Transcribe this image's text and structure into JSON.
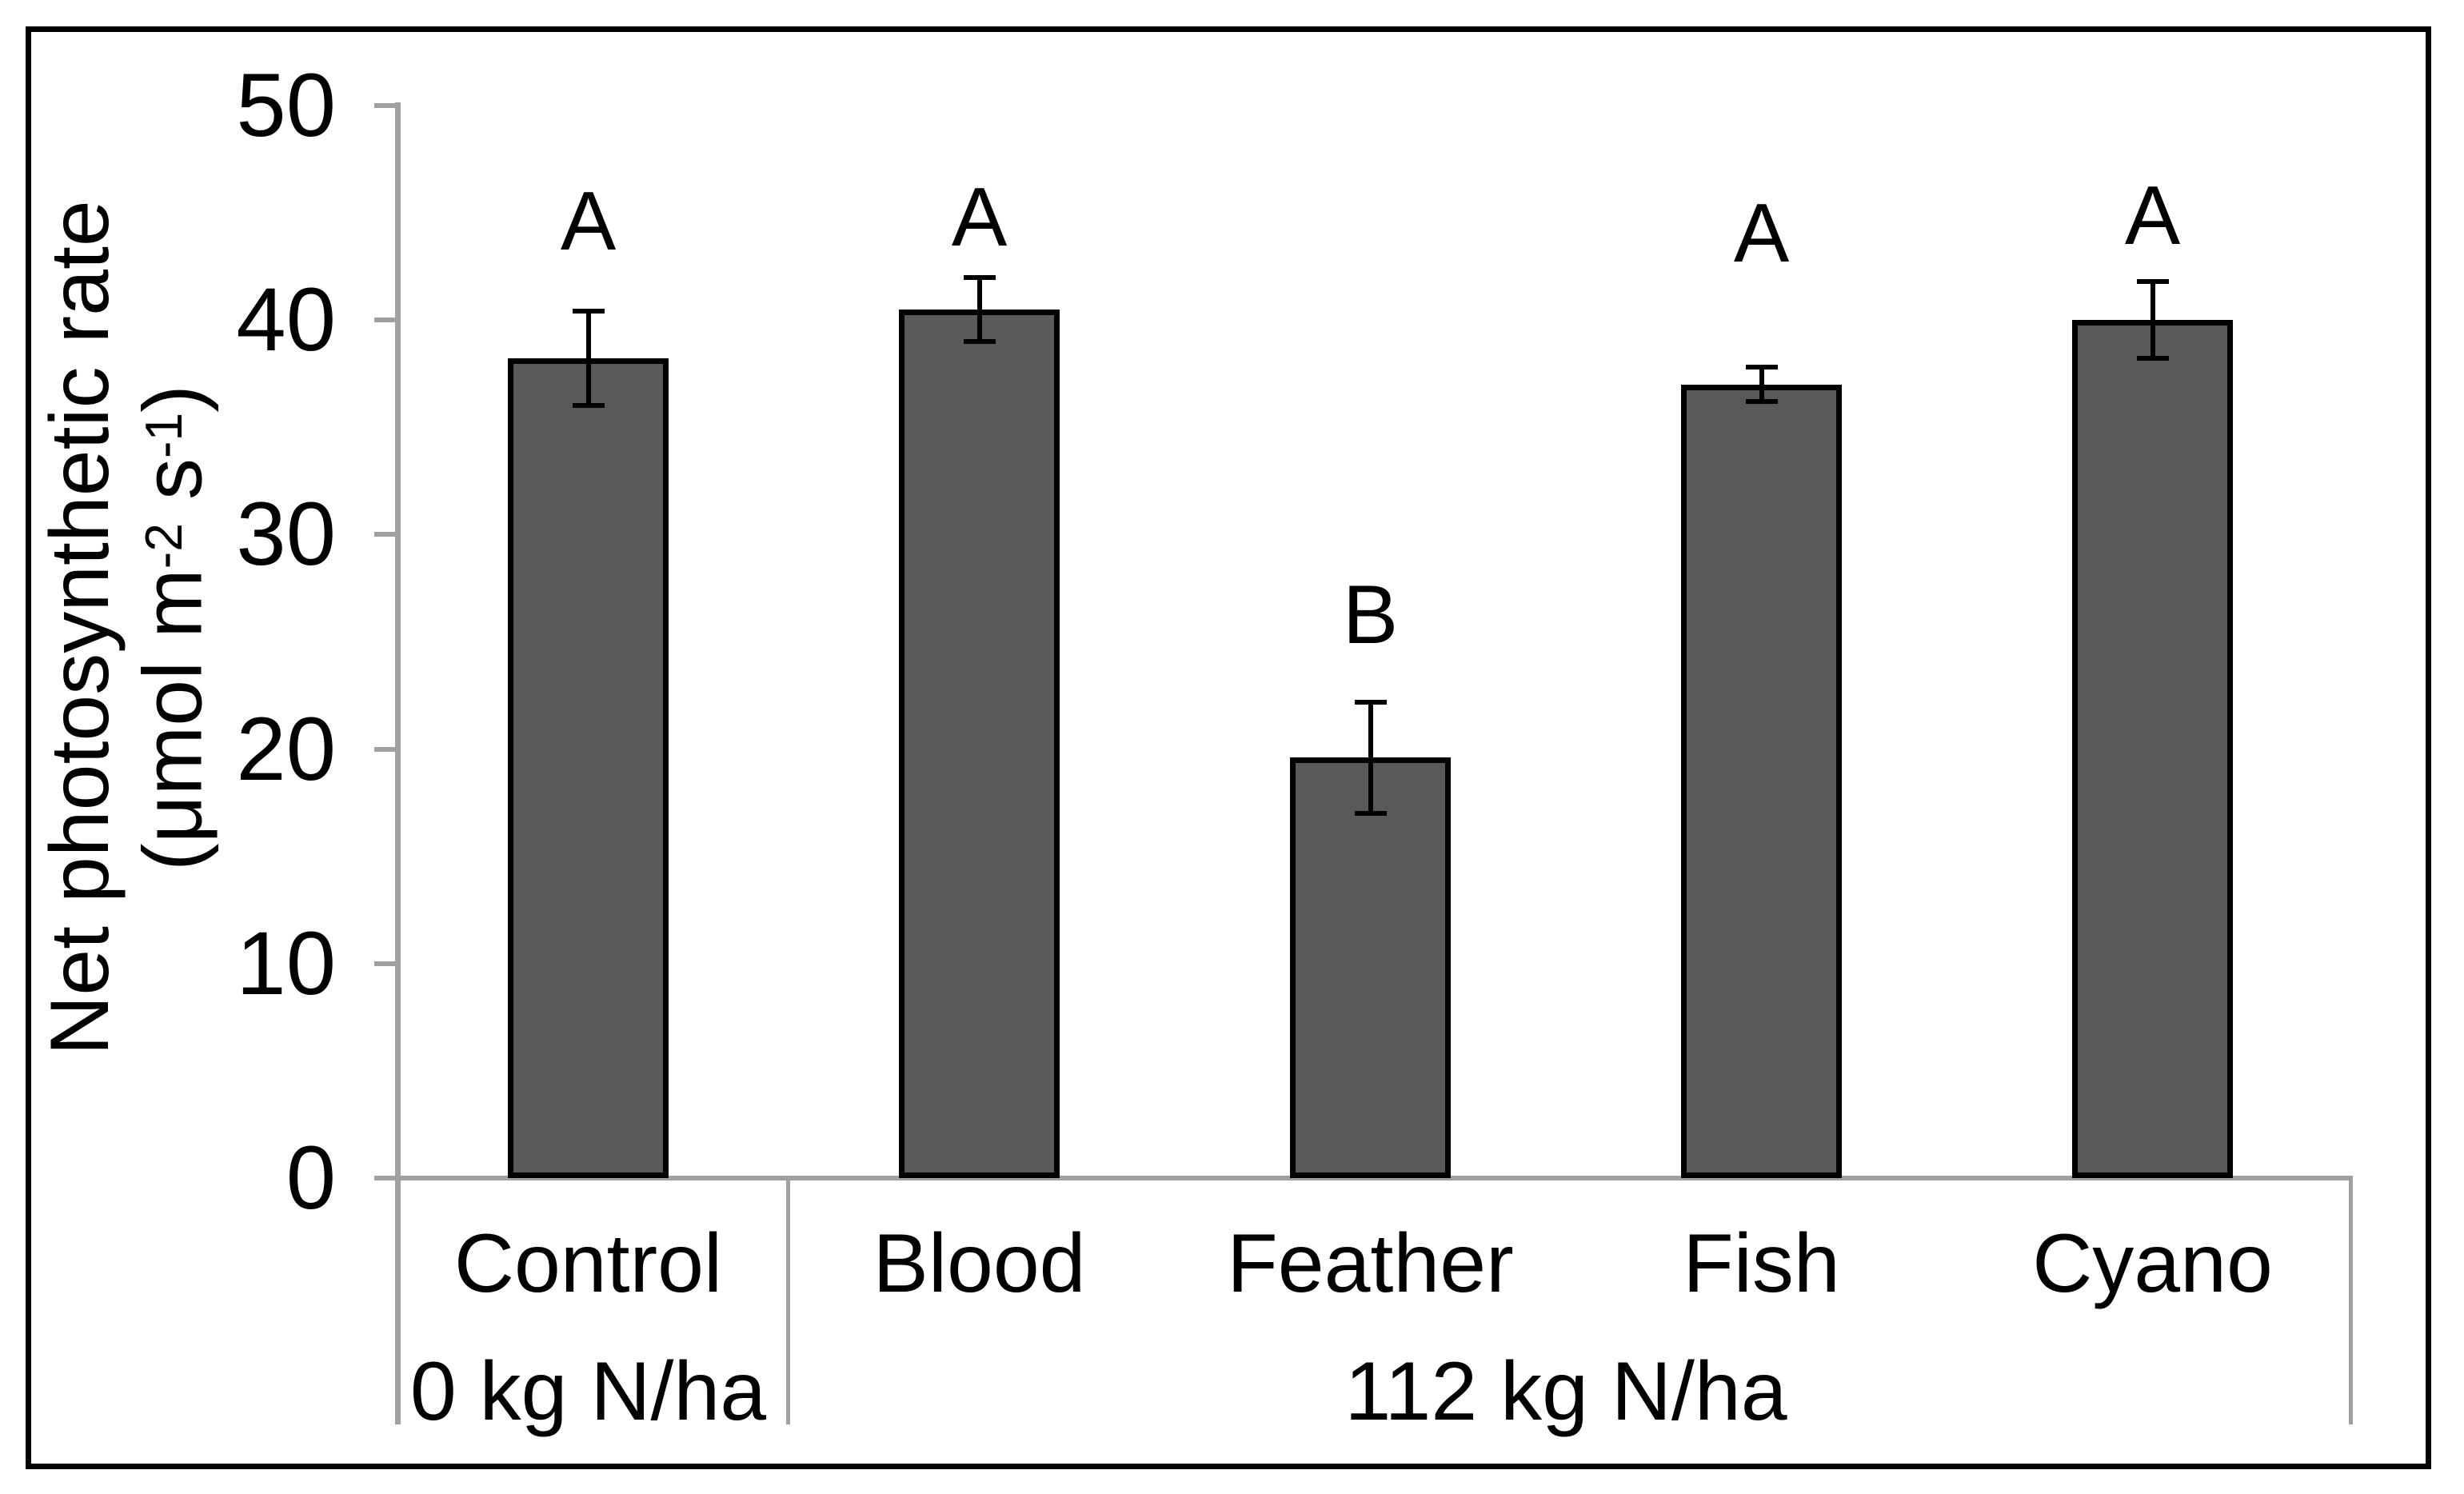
{
  "figure": {
    "background_color": "#FFFFFF",
    "border_color": "#000000"
  },
  "chart_data": {
    "type": "bar",
    "title": "",
    "ylabel": "Net photosynthetic rate",
    "ylabel_unit_plain": "(μmol m-2 s-1)",
    "ylabel_unit_parts": {
      "pre": "(μmol m",
      "sup1": "-2",
      "mid": " s",
      "sup2": "-1",
      "post": ")"
    },
    "ylim": [
      0,
      50
    ],
    "yticks": [
      0,
      10,
      20,
      30,
      40,
      50
    ],
    "grid": false,
    "legend_position": "none",
    "bar_fill_color": "#595959",
    "bar_border_color": "#000000",
    "axis_color": "#A0A0A0",
    "error_bar_color": "#000000",
    "categories": [
      "Control",
      "Blood",
      "Feather",
      "Fish",
      "Cyano"
    ],
    "series": [
      {
        "name": "Net photosynthetic rate",
        "values": [
          38.2,
          40.5,
          19.6,
          37.0,
          40.0
        ],
        "errors": [
          2.2,
          1.5,
          2.6,
          0.8,
          1.8
        ]
      }
    ],
    "significance_letters": [
      "A",
      "A",
      "B",
      "A",
      "A"
    ],
    "group_labels": [
      {
        "label": "0 kg N/ha",
        "category_span": [
          0,
          0
        ]
      },
      {
        "label": "112 kg N/ha",
        "category_span": [
          1,
          4
        ]
      }
    ]
  }
}
